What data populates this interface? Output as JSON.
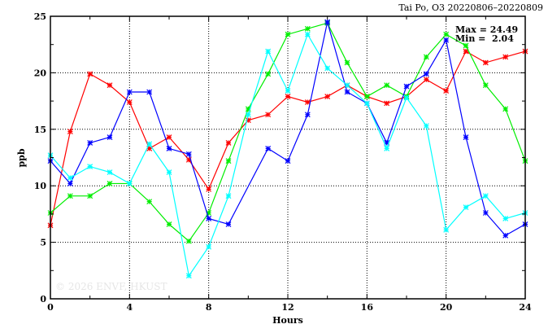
{
  "chart_data": {
    "type": "line",
    "title": "Tai Po, O3 20220806–20220809",
    "xlabel": "Hours",
    "ylabel": "ppb",
    "xlim": [
      0,
      24
    ],
    "ylim": [
      0,
      25
    ],
    "x_ticks": [
      "0",
      "4",
      "8",
      "12",
      "16",
      "20",
      "24"
    ],
    "y_ticks": [
      "0",
      "5",
      "10",
      "15",
      "20",
      "25"
    ],
    "grid": true,
    "annotation_max": "Max = 24.49",
    "annotation_min": "Min =  2.04",
    "watermark": "© 2026  ENVF, HKUST",
    "x": [
      0,
      1,
      2,
      3,
      4,
      5,
      6,
      7,
      8,
      9,
      10,
      11,
      12,
      13,
      14,
      15,
      16,
      17,
      18,
      19,
      20,
      21,
      22,
      23,
      24
    ],
    "series": [
      {
        "name": "red",
        "color": "#ff0000",
        "values": [
          6.5,
          14.8,
          19.9,
          18.9,
          17.4,
          13.3,
          14.3,
          12.3,
          9.7,
          13.8,
          15.8,
          16.3,
          17.9,
          17.4,
          17.9,
          18.9,
          17.9,
          17.3,
          17.9,
          19.4,
          18.4,
          21.9,
          20.9,
          21.4,
          21.9
        ]
      },
      {
        "name": "green",
        "color": "#00ee00",
        "values": [
          7.6,
          9.1,
          9.1,
          10.2,
          10.2,
          8.6,
          6.6,
          5.1,
          7.6,
          12.2,
          16.8,
          19.9,
          23.4,
          23.9,
          24.4,
          20.9,
          17.9,
          18.9,
          17.9,
          21.4,
          23.4,
          22.4,
          18.9,
          16.8,
          12.2
        ]
      },
      {
        "name": "blue",
        "color": "#0000ff",
        "values": [
          12.2,
          10.2,
          13.8,
          14.3,
          18.3,
          18.3,
          13.3,
          12.8,
          7.1,
          6.6,
          null,
          13.3,
          12.2,
          16.3,
          24.49,
          18.3,
          17.3,
          13.8,
          18.8,
          19.9,
          22.9,
          14.3,
          7.6,
          5.6,
          6.6
        ]
      },
      {
        "name": "cyan",
        "color": "#00ffff",
        "values": [
          12.7,
          10.7,
          11.7,
          11.2,
          10.2,
          13.7,
          11.2,
          2.04,
          4.6,
          9.1,
          16.3,
          21.9,
          18.4,
          23.4,
          20.4,
          18.9,
          17.3,
          13.3,
          17.8,
          15.3,
          6.1,
          8.1,
          9.1,
          7.1,
          7.6
        ]
      }
    ]
  }
}
